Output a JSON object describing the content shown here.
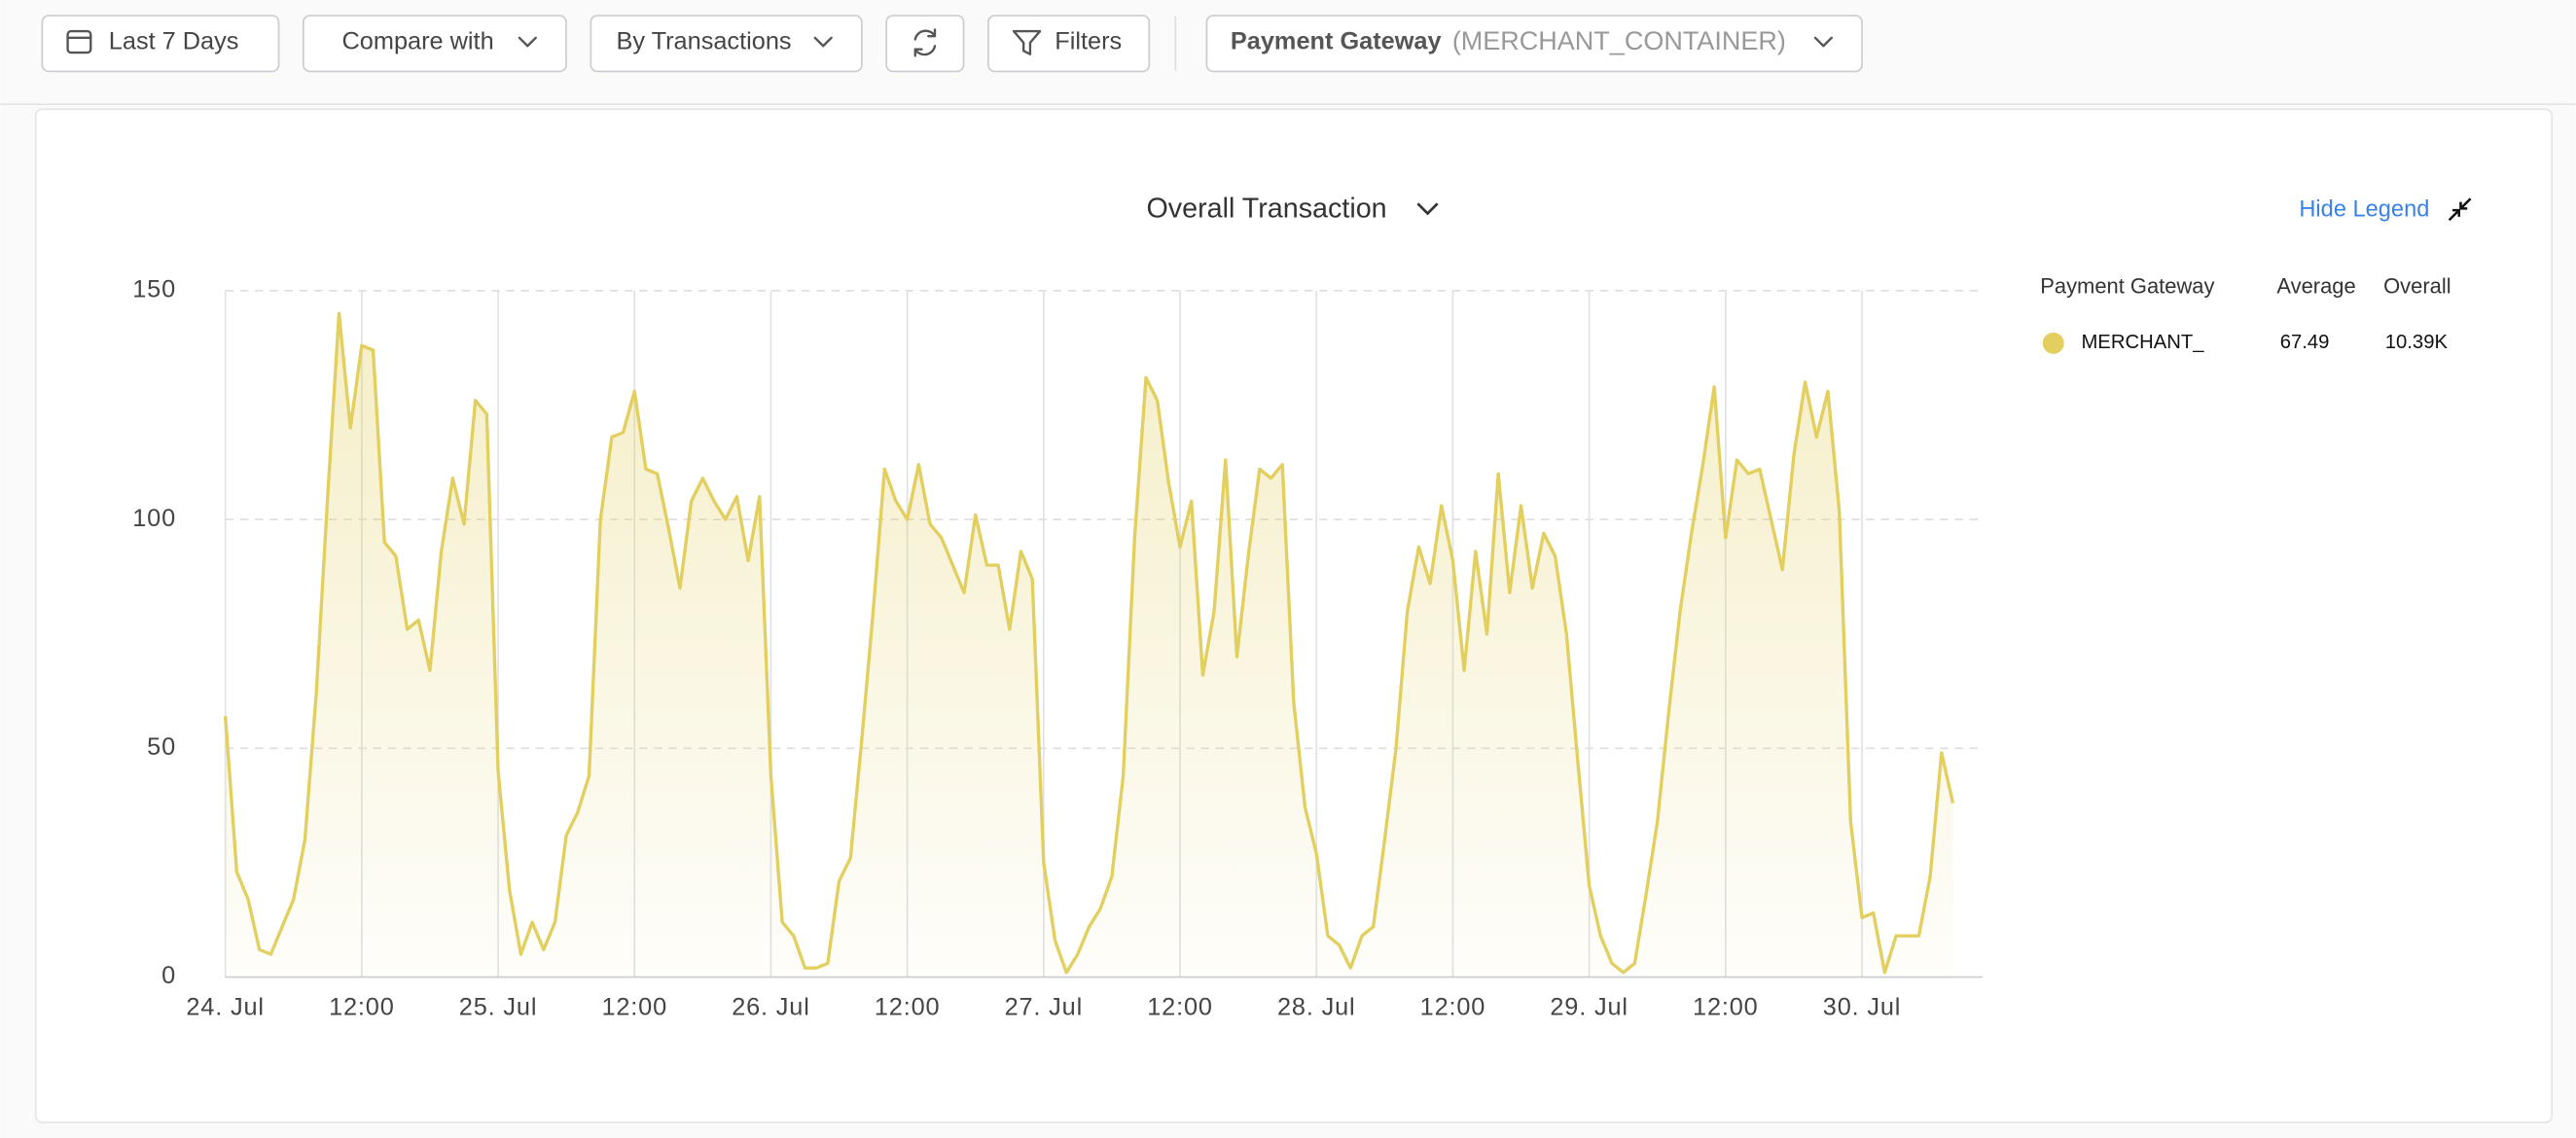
{
  "toolbar": {
    "date_range": "Last 7 Days",
    "compare": "Compare with",
    "metric": "By Transactions",
    "filters": "Filters",
    "dimension_label": "Payment Gateway",
    "dimension_value": "(MERCHANT_CONTAINER)"
  },
  "hide_legend": "Hide Legend",
  "legend": {
    "columns": [
      "Payment Gateway",
      "Average",
      "Overall"
    ],
    "average": "67.49",
    "overall": "10.39K"
  },
  "chart_data": {
    "type": "area",
    "title": "Overall Transaction",
    "categories": [
      "24. Jul",
      null,
      null,
      null,
      null,
      null,
      null,
      null,
      null,
      null,
      null,
      null,
      "12:00",
      null,
      null,
      null,
      null,
      null,
      null,
      null,
      null,
      null,
      null,
      null,
      "25. Jul",
      null,
      null,
      null,
      null,
      null,
      null,
      null,
      null,
      null,
      null,
      null,
      "12:00",
      null,
      null,
      null,
      null,
      null,
      null,
      null,
      null,
      null,
      null,
      null,
      "26. Jul",
      null,
      null,
      null,
      null,
      null,
      null,
      null,
      null,
      null,
      null,
      null,
      "12:00",
      null,
      null,
      null,
      null,
      null,
      null,
      null,
      null,
      null,
      null,
      null,
      "27. Jul",
      null,
      null,
      null,
      null,
      null,
      null,
      null,
      null,
      null,
      null,
      null,
      "12:00",
      null,
      null,
      null,
      null,
      null,
      null,
      null,
      null,
      null,
      null,
      null,
      "28. Jul",
      null,
      null,
      null,
      null,
      null,
      null,
      null,
      null,
      null,
      null,
      null,
      "12:00",
      null,
      null,
      null,
      null,
      null,
      null,
      null,
      null,
      null,
      null,
      null,
      "29. Jul",
      null,
      null,
      null,
      null,
      null,
      null,
      null,
      null,
      null,
      null,
      null,
      "12:00",
      null,
      null,
      null,
      null,
      null,
      null,
      null,
      null,
      null,
      null,
      null,
      "30. Jul",
      null,
      null,
      null,
      null,
      null,
      null,
      null,
      null
    ],
    "series": [
      {
        "name": "MERCHANT_",
        "color": "#e2cf5f",
        "values": [
          57,
          23,
          17,
          6,
          5,
          11,
          17,
          30,
          62,
          105,
          145,
          120,
          138,
          137,
          95,
          92,
          76,
          78,
          67,
          93,
          109,
          99,
          126,
          123,
          45,
          19,
          5,
          12,
          6,
          12,
          31,
          36,
          44,
          100,
          118,
          119,
          128,
          111,
          110,
          98,
          85,
          104,
          109,
          104,
          100,
          105,
          91,
          105,
          44,
          12,
          9,
          2,
          2,
          3,
          21,
          26,
          52,
          80,
          111,
          104,
          100,
          112,
          99,
          96,
          90,
          84,
          101,
          90,
          90,
          76,
          93,
          87,
          25,
          8,
          1,
          5,
          11,
          15,
          22,
          44,
          96,
          131,
          126,
          108,
          94,
          104,
          66,
          80,
          113,
          70,
          92,
          111,
          109,
          112,
          60,
          37,
          27,
          9,
          7,
          2,
          9,
          11,
          30,
          50,
          80,
          94,
          86,
          103,
          91,
          67,
          93,
          75,
          110,
          84,
          103,
          85,
          97,
          92,
          75,
          47,
          20,
          9,
          3,
          1,
          3,
          18,
          34,
          58,
          80,
          97,
          112,
          129,
          96,
          113,
          110,
          111,
          100,
          89,
          114,
          130,
          118,
          128,
          102,
          34,
          13,
          14,
          1,
          9,
          9,
          9,
          22,
          49,
          38
        ]
      }
    ],
    "ylim": [
      0,
      150
    ],
    "yticks": [
      0,
      50,
      100,
      150
    ],
    "grid": true
  }
}
